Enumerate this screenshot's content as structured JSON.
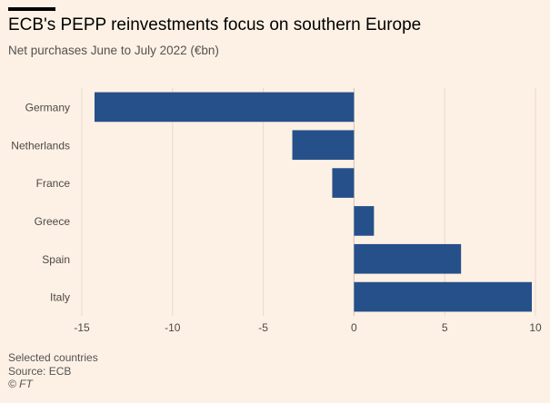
{
  "title": "ECB's PEPP reinvestments focus on southern Europe",
  "subtitle": "Net purchases June to July 2022 (€bn)",
  "footer": {
    "note": "Selected countries",
    "source": "Source: ECB",
    "credit": "© FT"
  },
  "colors": {
    "background": "#fdf1e5",
    "bar": "#26508a",
    "grid": "#e6d9ce",
    "text": "#33302e"
  },
  "chart_data": {
    "type": "bar",
    "orientation": "horizontal",
    "categories": [
      "Germany",
      "Netherlands",
      "France",
      "Greece",
      "Spain",
      "Italy"
    ],
    "values": [
      -14.3,
      -3.4,
      -1.2,
      1.1,
      5.9,
      9.8
    ],
    "xlim": [
      -15,
      10
    ],
    "xticks": [
      -15,
      -10,
      -5,
      0,
      5,
      10
    ],
    "xtick_labels": [
      "-15",
      "-10",
      "-5",
      "0",
      "5",
      "10"
    ],
    "grid": true
  }
}
